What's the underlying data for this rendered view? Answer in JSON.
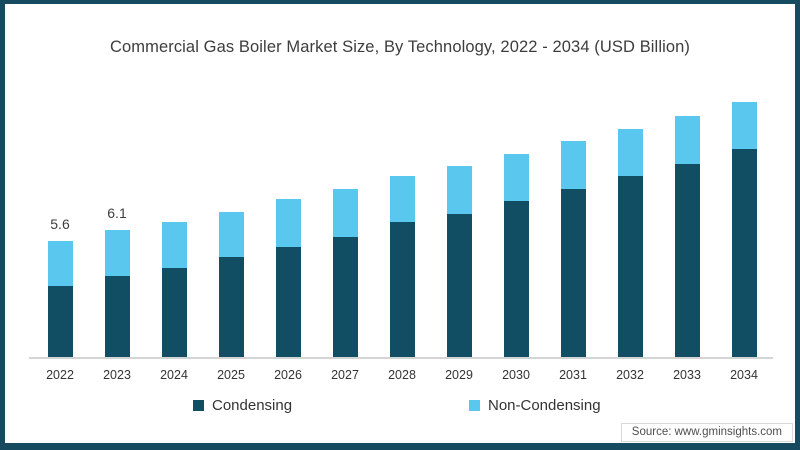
{
  "title": "Commercial Gas Boiler Market Size, By Technology, 2022 - 2034 (USD Billion)",
  "source": "Source: www.gminsights.com",
  "colors": {
    "frame_border": "#164a5e",
    "axis_line": "#d4d4d4",
    "condensing": "#114e63",
    "non_condensing": "#5ac8ee",
    "text": "#3d3d3d"
  },
  "chart_data": {
    "type": "bar",
    "stacked": true,
    "title": "Commercial Gas Boiler Market Size, By Technology, 2022 - 2034 (USD Billion)",
    "categories": [
      "2022",
      "2023",
      "2024",
      "2025",
      "2026",
      "2027",
      "2028",
      "2029",
      "2030",
      "2031",
      "2032",
      "2033",
      "2034"
    ],
    "series": [
      {
        "name": "Condensing",
        "color": "#114e63",
        "values": [
          3.4,
          3.9,
          4.3,
          4.8,
          5.3,
          5.8,
          6.5,
          6.9,
          7.5,
          8.1,
          8.7,
          9.3,
          10.0
        ]
      },
      {
        "name": "Non-Condensing",
        "color": "#5ac8ee",
        "values": [
          2.2,
          2.2,
          2.2,
          2.2,
          2.3,
          2.3,
          2.2,
          2.3,
          2.3,
          2.3,
          2.3,
          2.3,
          2.3
        ]
      }
    ],
    "totals": [
      5.6,
      6.1,
      6.5,
      7.0,
      7.6,
      8.1,
      8.7,
      9.2,
      9.8,
      10.4,
      11.0,
      11.6,
      12.3
    ],
    "shown_total_labels": {
      "2022": "5.6",
      "2023": "6.1"
    },
    "xlabel": "",
    "ylabel": "",
    "y_axis_visible": false,
    "grid": false,
    "legend_position": "bottom"
  }
}
